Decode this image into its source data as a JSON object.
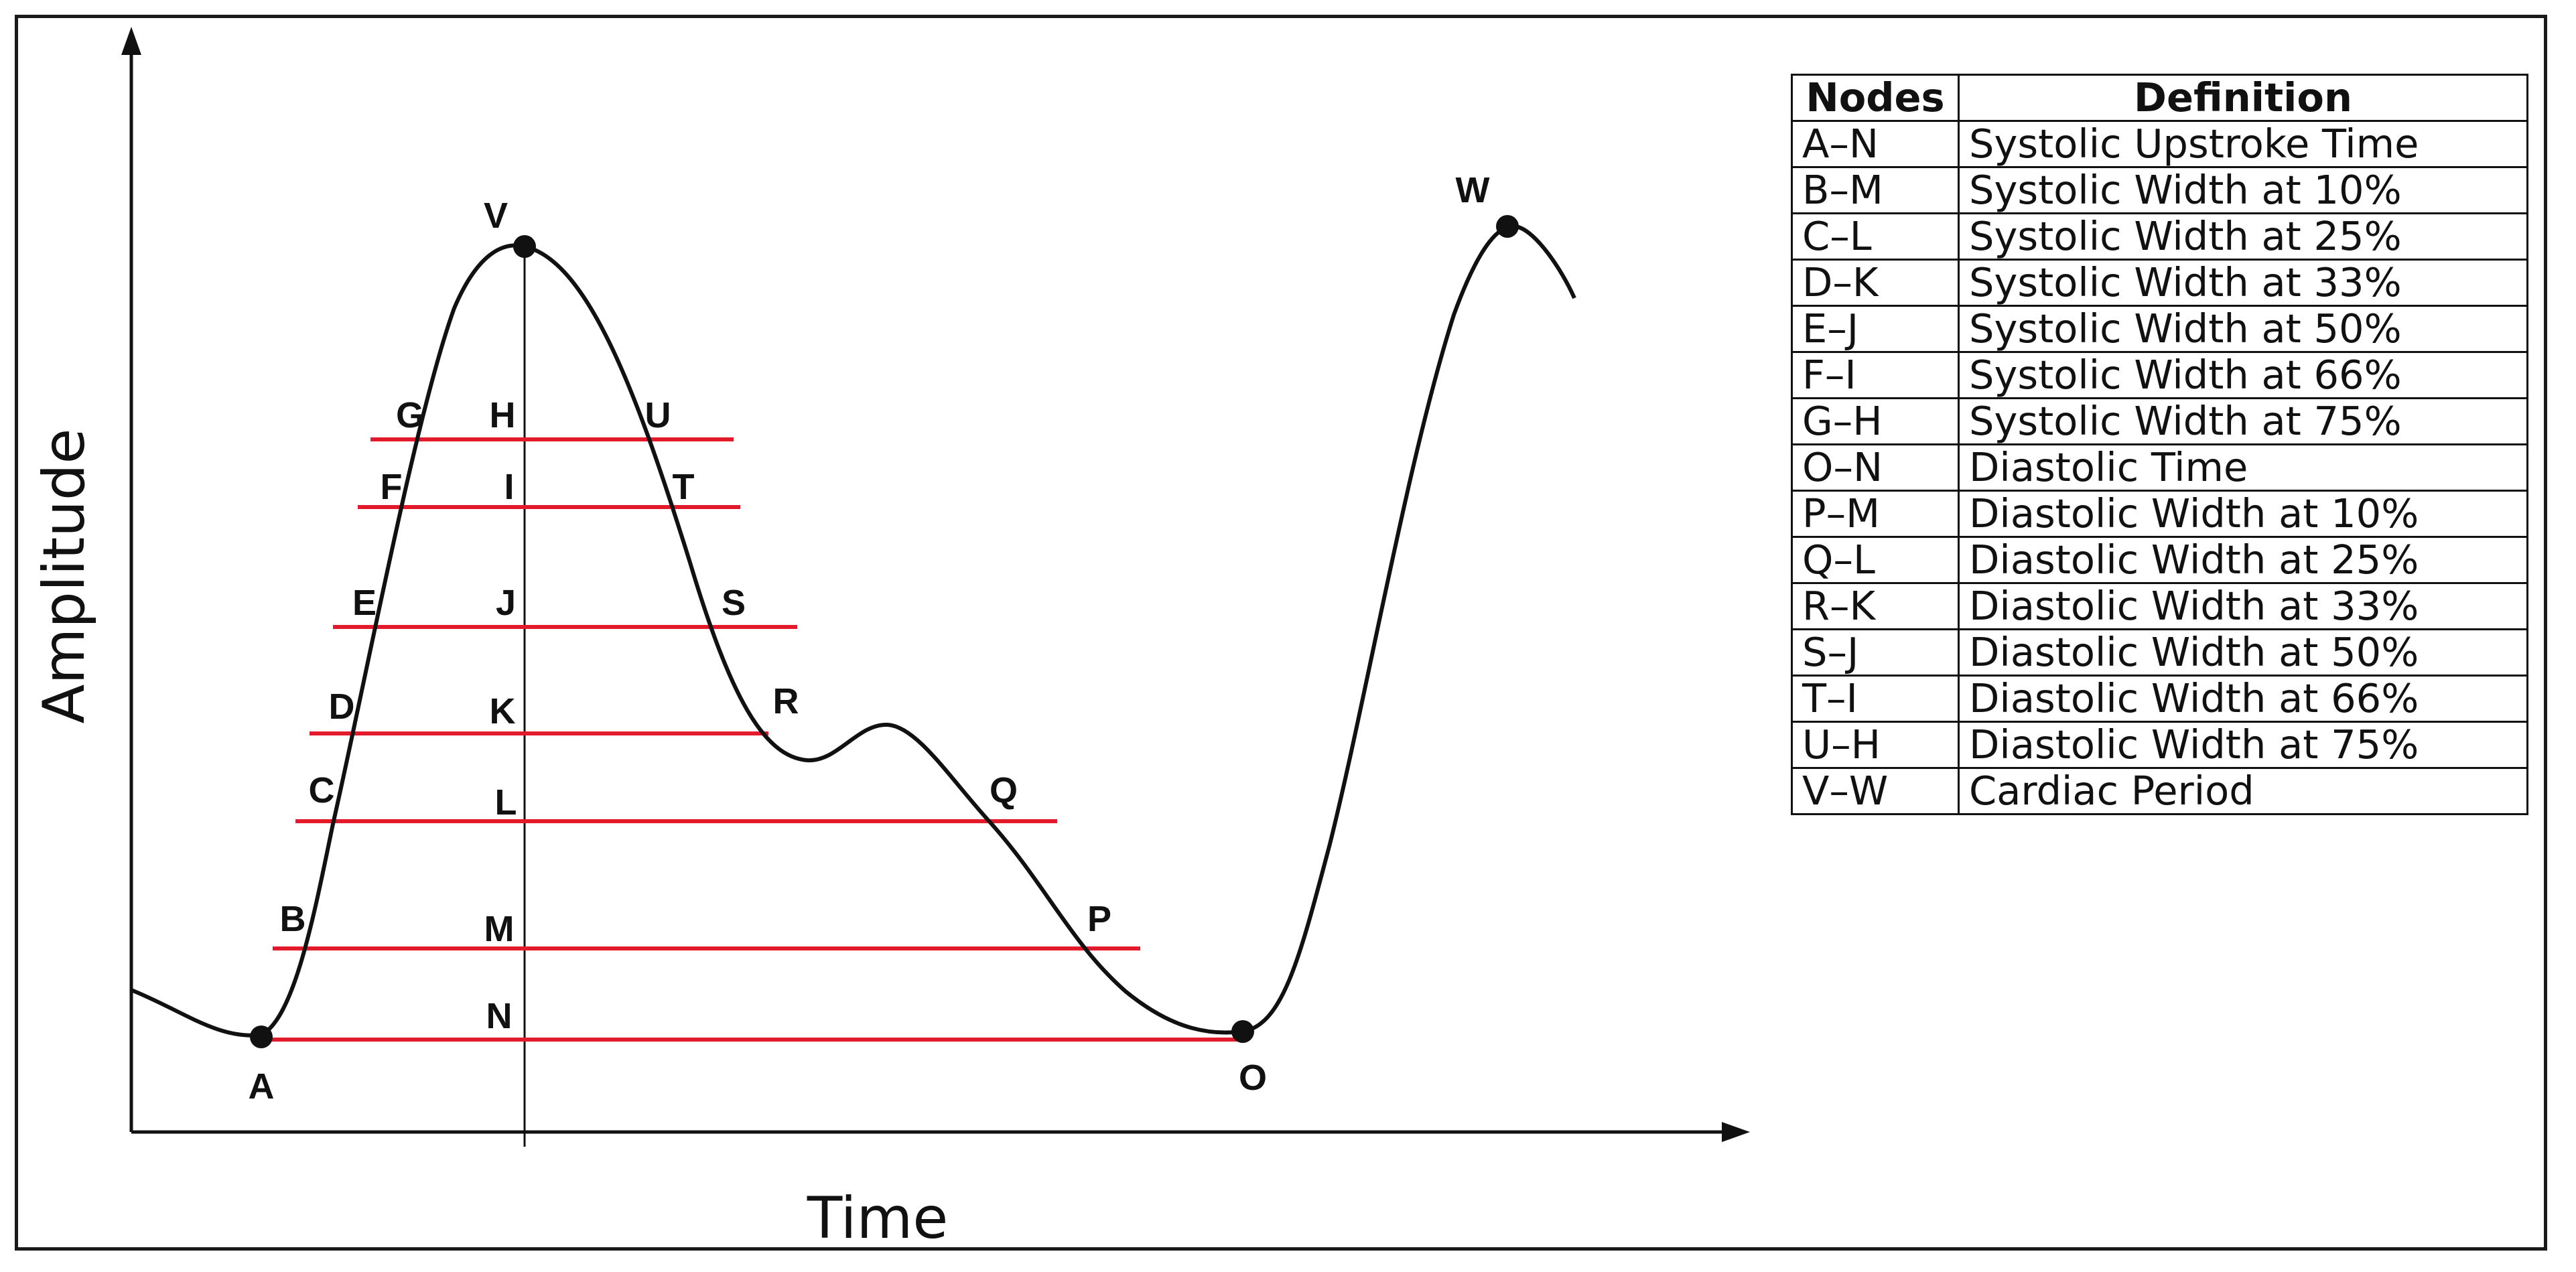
{
  "axes": {
    "y_label": "Amplitude",
    "x_label": "Time"
  },
  "points": [
    "A",
    "B",
    "C",
    "D",
    "E",
    "F",
    "G",
    "H",
    "I",
    "J",
    "K",
    "L",
    "M",
    "N",
    "O",
    "P",
    "Q",
    "R",
    "S",
    "T",
    "U",
    "V",
    "W"
  ],
  "colors": {
    "curve": "#111111",
    "level_line": "#e31a2b",
    "frame": "#1a1a1a"
  },
  "table": {
    "headers": [
      "Nodes",
      "Definition"
    ],
    "rows": [
      [
        "A–N",
        "Systolic Upstroke Time"
      ],
      [
        "B–M",
        "Systolic Width at 10%"
      ],
      [
        "C–L",
        "Systolic Width at 25%"
      ],
      [
        "D–K",
        "Systolic Width at 33%"
      ],
      [
        "E–J",
        "Systolic Width at 50%"
      ],
      [
        "F–I",
        "Systolic Width at 66%"
      ],
      [
        "G–H",
        "Systolic Width at 75%"
      ],
      [
        "O–N",
        "Diastolic Time"
      ],
      [
        "P–M",
        "Diastolic Width at 10%"
      ],
      [
        "Q–L",
        "Diastolic Width at 25%"
      ],
      [
        "R–K",
        "Diastolic Width at 33%"
      ],
      [
        "S–J",
        "Diastolic Width at 50%"
      ],
      [
        "T–I",
        "Diastolic Width at 66%"
      ],
      [
        "U–H",
        "Diastolic Width at 75%"
      ],
      [
        "V–W",
        "Cardiac Period"
      ]
    ]
  }
}
